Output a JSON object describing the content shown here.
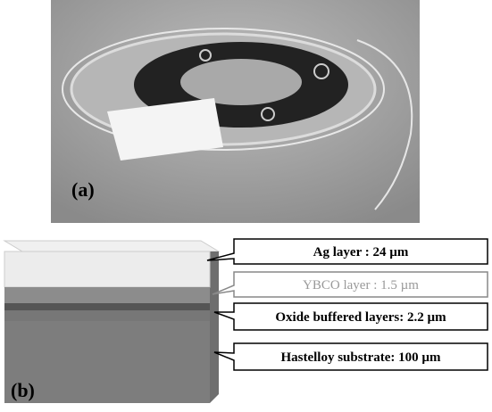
{
  "panels": [
    {
      "label": "(a)"
    },
    {
      "label": "(b)"
    }
  ],
  "layers": [
    {
      "label": "Ag layer : 24 µm"
    },
    {
      "label": "YBCO layer : 1.5 µm"
    },
    {
      "label": "Oxide buffered layers: 2.2 µm"
    },
    {
      "label": "Hastelloy substrate: 100 µm"
    }
  ]
}
